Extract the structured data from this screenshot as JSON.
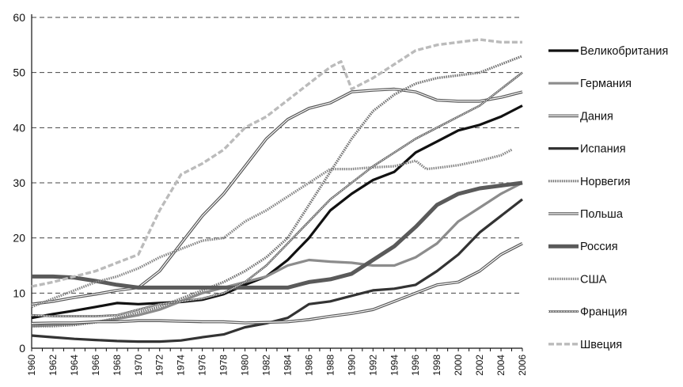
{
  "chart_data": {
    "type": "line",
    "title": "",
    "xlabel": "",
    "ylabel": "",
    "ylim": [
      0,
      60
    ],
    "xlim": [
      1960,
      2006
    ],
    "yticks": [
      0,
      10,
      20,
      30,
      40,
      50,
      60
    ],
    "xticks": [
      1960,
      1962,
      1964,
      1966,
      1968,
      1970,
      1972,
      1974,
      1976,
      1978,
      1980,
      1982,
      1984,
      1986,
      1988,
      1990,
      1992,
      1994,
      1996,
      1998,
      2000,
      2002,
      2004,
      2006
    ],
    "grid": "horizontal dashed",
    "legend_position": "right",
    "series": [
      {
        "name": "Великобритания",
        "color": "#111111",
        "style": "solid",
        "points": [
          [
            1960,
            5.5
          ],
          [
            1962,
            6.2
          ],
          [
            1964,
            6.8
          ],
          [
            1966,
            7.5
          ],
          [
            1968,
            8.2
          ],
          [
            1970,
            8.0
          ],
          [
            1972,
            8.2
          ],
          [
            1974,
            8.4
          ],
          [
            1976,
            8.8
          ],
          [
            1978,
            9.8
          ],
          [
            1980,
            11.5
          ],
          [
            1982,
            13
          ],
          [
            1984,
            16
          ],
          [
            1986,
            20
          ],
          [
            1988,
            25
          ],
          [
            1990,
            28
          ],
          [
            1992,
            30.5
          ],
          [
            1994,
            32
          ],
          [
            1996,
            35.5
          ],
          [
            1998,
            37.5
          ],
          [
            2000,
            39.5
          ],
          [
            2002,
            40.5
          ],
          [
            2004,
            42
          ],
          [
            2006,
            44
          ]
        ]
      },
      {
        "name": "Германия",
        "color": "#8c8c8c",
        "style": "solid",
        "points": [
          [
            1960,
            4
          ],
          [
            1962,
            4.2
          ],
          [
            1964,
            4.4
          ],
          [
            1966,
            4.8
          ],
          [
            1968,
            5.3
          ],
          [
            1970,
            6
          ],
          [
            1972,
            7
          ],
          [
            1974,
            8.5
          ],
          [
            1976,
            10
          ],
          [
            1978,
            11
          ],
          [
            1980,
            12
          ],
          [
            1982,
            13
          ],
          [
            1984,
            15
          ],
          [
            1986,
            16
          ],
          [
            1988,
            15.7
          ],
          [
            1990,
            15.5
          ],
          [
            1992,
            15
          ],
          [
            1994,
            15
          ],
          [
            1996,
            16.5
          ],
          [
            1998,
            19
          ],
          [
            2000,
            23
          ],
          [
            2002,
            25.5
          ],
          [
            2004,
            28
          ],
          [
            2006,
            30
          ]
        ]
      },
      {
        "name": "Дания",
        "color": "#555555",
        "style": "double",
        "points": [
          [
            1960,
            8
          ],
          [
            1962,
            8.5
          ],
          [
            1964,
            9.2
          ],
          [
            1966,
            9.8
          ],
          [
            1968,
            10.5
          ],
          [
            1970,
            11
          ],
          [
            1972,
            14
          ],
          [
            1974,
            19
          ],
          [
            1976,
            24
          ],
          [
            1978,
            28
          ],
          [
            1980,
            33
          ],
          [
            1982,
            38
          ],
          [
            1984,
            41.5
          ],
          [
            1986,
            43.5
          ],
          [
            1988,
            44.5
          ],
          [
            1990,
            46.5
          ],
          [
            1992,
            46.8
          ],
          [
            1994,
            47
          ],
          [
            1996,
            46.5
          ],
          [
            1998,
            45
          ],
          [
            2000,
            44.8
          ],
          [
            2002,
            44.8
          ],
          [
            2004,
            45.5
          ],
          [
            2006,
            46.5
          ]
        ]
      },
      {
        "name": "Испания",
        "color": "#333333",
        "style": "solid",
        "points": [
          [
            1960,
            2.3
          ],
          [
            1962,
            2
          ],
          [
            1964,
            1.7
          ],
          [
            1966,
            1.5
          ],
          [
            1968,
            1.3
          ],
          [
            1970,
            1.2
          ],
          [
            1972,
            1.2
          ],
          [
            1974,
            1.4
          ],
          [
            1976,
            2
          ],
          [
            1978,
            2.5
          ],
          [
            1980,
            3.8
          ],
          [
            1982,
            4.5
          ],
          [
            1984,
            5.5
          ],
          [
            1986,
            8
          ],
          [
            1988,
            8.5
          ],
          [
            1990,
            9.5
          ],
          [
            1992,
            10.5
          ],
          [
            1994,
            10.8
          ],
          [
            1996,
            11.5
          ],
          [
            1998,
            14
          ],
          [
            2000,
            17
          ],
          [
            2002,
            21
          ],
          [
            2004,
            24
          ],
          [
            2006,
            27
          ]
        ]
      },
      {
        "name": "Норвегия",
        "color": "#777777",
        "style": "dotted",
        "points": [
          [
            1960,
            4
          ],
          [
            1962,
            4
          ],
          [
            1964,
            4.2
          ],
          [
            1966,
            4.7
          ],
          [
            1968,
            5.5
          ],
          [
            1970,
            6.5
          ],
          [
            1972,
            7.5
          ],
          [
            1974,
            9
          ],
          [
            1976,
            10.5
          ],
          [
            1978,
            12
          ],
          [
            1980,
            14
          ],
          [
            1982,
            16.5
          ],
          [
            1984,
            20
          ],
          [
            1986,
            26
          ],
          [
            1988,
            32
          ],
          [
            1990,
            38
          ],
          [
            1992,
            43
          ],
          [
            1994,
            46
          ],
          [
            1996,
            48
          ],
          [
            1998,
            49
          ],
          [
            2000,
            49.5
          ],
          [
            2002,
            50
          ],
          [
            2004,
            51.5
          ],
          [
            2006,
            53
          ]
        ]
      },
      {
        "name": "Польша",
        "color": "#555555",
        "style": "double",
        "points": [
          [
            1960,
            4.5
          ],
          [
            1962,
            4.6
          ],
          [
            1964,
            4.6
          ],
          [
            1966,
            4.8
          ],
          [
            1968,
            4.8
          ],
          [
            1970,
            5
          ],
          [
            1972,
            5
          ],
          [
            1974,
            4.9
          ],
          [
            1976,
            4.8
          ],
          [
            1978,
            4.8
          ],
          [
            1980,
            4.6
          ],
          [
            1982,
            4.7
          ],
          [
            1984,
            4.8
          ],
          [
            1986,
            5.2
          ],
          [
            1988,
            5.8
          ],
          [
            1990,
            6.3
          ],
          [
            1992,
            7
          ],
          [
            1994,
            8.5
          ],
          [
            1996,
            10
          ],
          [
            1998,
            11.5
          ],
          [
            2000,
            12
          ],
          [
            2002,
            14
          ],
          [
            2004,
            17
          ],
          [
            2006,
            19
          ]
        ]
      },
      {
        "name": "Россия",
        "color": "#5a5a5a",
        "style": "thick",
        "points": [
          [
            1960,
            13
          ],
          [
            1962,
            13
          ],
          [
            1964,
            12.8
          ],
          [
            1966,
            12.2
          ],
          [
            1968,
            11.5
          ],
          [
            1970,
            11
          ],
          [
            1972,
            11
          ],
          [
            1974,
            11
          ],
          [
            1976,
            11
          ],
          [
            1978,
            11
          ],
          [
            1980,
            11
          ],
          [
            1982,
            11
          ],
          [
            1984,
            11
          ],
          [
            1986,
            12
          ],
          [
            1988,
            12.5
          ],
          [
            1990,
            13.5
          ],
          [
            1992,
            16
          ],
          [
            1994,
            18.5
          ],
          [
            1996,
            22
          ],
          [
            1998,
            26
          ],
          [
            2000,
            28
          ],
          [
            2002,
            29
          ],
          [
            2004,
            29.5
          ],
          [
            2006,
            30
          ]
        ]
      },
      {
        "name": "США",
        "color": "#888888",
        "style": "dotted",
        "points": [
          [
            1960,
            7.5
          ],
          [
            1962,
            9
          ],
          [
            1964,
            10.5
          ],
          [
            1966,
            12
          ],
          [
            1968,
            13
          ],
          [
            1970,
            14.5
          ],
          [
            1972,
            16.5
          ],
          [
            1974,
            18
          ],
          [
            1976,
            19.5
          ],
          [
            1978,
            20
          ],
          [
            1980,
            23
          ],
          [
            1982,
            25
          ],
          [
            1984,
            27.5
          ],
          [
            1986,
            30
          ],
          [
            1988,
            32.5
          ],
          [
            1990,
            32.5
          ],
          [
            1992,
            32.8
          ],
          [
            1994,
            33
          ],
          [
            1996,
            34
          ],
          [
            1997,
            32.5
          ],
          [
            1998,
            32.7
          ],
          [
            2000,
            33.2
          ],
          [
            2002,
            34
          ],
          [
            2004,
            35
          ],
          [
            2005,
            36
          ]
        ]
      },
      {
        "name": "Франция",
        "color": "#555555",
        "style": "fine-dotted",
        "points": [
          [
            1960,
            6
          ],
          [
            1962,
            5.8
          ],
          [
            1964,
            5.8
          ],
          [
            1966,
            5.8
          ],
          [
            1968,
            6
          ],
          [
            1970,
            7
          ],
          [
            1972,
            8
          ],
          [
            1974,
            8.5
          ],
          [
            1976,
            9
          ],
          [
            1978,
            10
          ],
          [
            1980,
            12
          ],
          [
            1982,
            15
          ],
          [
            1984,
            19
          ],
          [
            1986,
            23
          ],
          [
            1988,
            27
          ],
          [
            1990,
            30
          ],
          [
            1992,
            33
          ],
          [
            1994,
            35.5
          ],
          [
            1996,
            38
          ],
          [
            1998,
            40
          ],
          [
            2000,
            42
          ],
          [
            2002,
            44
          ],
          [
            2004,
            47
          ],
          [
            2006,
            50
          ]
        ]
      },
      {
        "name": "Швеция",
        "color": "#bbbbbb",
        "style": "dashed",
        "points": [
          [
            1960,
            11.2
          ],
          [
            1962,
            12
          ],
          [
            1964,
            13
          ],
          [
            1966,
            14
          ],
          [
            1968,
            15.5
          ],
          [
            1970,
            17
          ],
          [
            1972,
            25
          ],
          [
            1974,
            31.5
          ],
          [
            1976,
            33.5
          ],
          [
            1978,
            36
          ],
          [
            1980,
            40
          ],
          [
            1982,
            42
          ],
          [
            1984,
            45
          ],
          [
            1986,
            48
          ],
          [
            1988,
            51
          ],
          [
            1989,
            52
          ],
          [
            1990,
            47
          ],
          [
            1992,
            49
          ],
          [
            1994,
            51.5
          ],
          [
            1996,
            54
          ],
          [
            1998,
            55
          ],
          [
            2000,
            55.5
          ],
          [
            2002,
            56
          ],
          [
            2004,
            55.5
          ],
          [
            2006,
            55.5
          ]
        ]
      }
    ]
  }
}
